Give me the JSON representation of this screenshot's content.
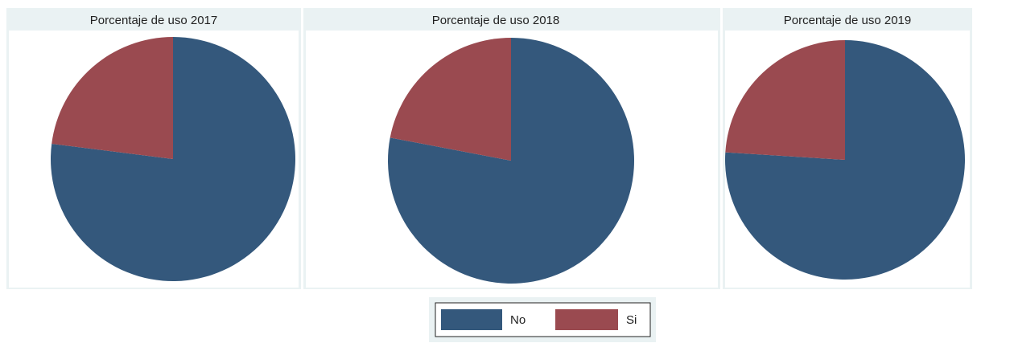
{
  "chart_data": [
    {
      "type": "pie",
      "title": "Porcentaje de uso 2017",
      "categories": [
        "No",
        "Si"
      ],
      "values": [
        77,
        23
      ],
      "colors": [
        "#34587c",
        "#9a4a50"
      ]
    },
    {
      "type": "pie",
      "title": "Porcentaje de uso 2018",
      "categories": [
        "No",
        "Si"
      ],
      "values": [
        78,
        22
      ],
      "colors": [
        "#34587c",
        "#9a4a50"
      ]
    },
    {
      "type": "pie",
      "title": "Porcentaje de uso 2019",
      "categories": [
        "No",
        "Si"
      ],
      "values": [
        76,
        24
      ],
      "colors": [
        "#34587c",
        "#9a4a50"
      ]
    }
  ]
}
